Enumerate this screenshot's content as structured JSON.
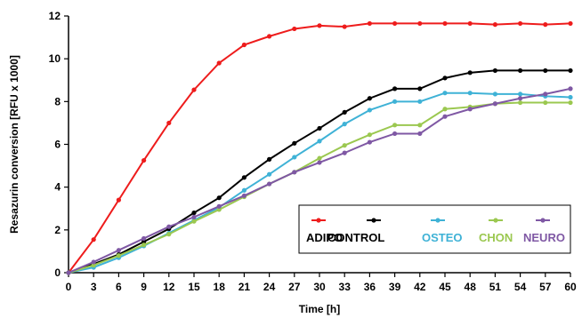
{
  "chart_data": {
    "type": "line",
    "title": "",
    "xlabel": "Time [h]",
    "ylabel": "Resazurin conversion [RFU x 1000]",
    "xlim": [
      0,
      60
    ],
    "ylim": [
      0,
      12
    ],
    "x_ticks": [
      0,
      3,
      6,
      9,
      12,
      15,
      18,
      21,
      24,
      27,
      30,
      33,
      36,
      39,
      42,
      45,
      48,
      51,
      54,
      57,
      60
    ],
    "y_ticks": [
      0,
      2,
      4,
      6,
      8,
      10,
      12
    ],
    "grid": false,
    "legend_position": "bottom-right",
    "x": [
      0,
      3,
      6,
      9,
      12,
      15,
      18,
      21,
      24,
      27,
      30,
      33,
      36,
      39,
      42,
      45,
      48,
      51,
      54,
      57,
      60
    ],
    "series": [
      {
        "name": "ADIPO",
        "color": "#ee1c1c",
        "label_color": "#000000",
        "values": [
          0,
          1.55,
          3.4,
          5.25,
          7.0,
          8.55,
          9.8,
          10.65,
          11.05,
          11.4,
          11.55,
          11.5,
          11.65,
          11.65,
          11.65,
          11.65,
          11.65,
          11.6,
          11.65,
          11.6,
          11.65
        ]
      },
      {
        "name": "CONTROL",
        "color": "#000000",
        "label_color": "#000000",
        "values": [
          0,
          0.4,
          0.85,
          1.45,
          2.05,
          2.8,
          3.5,
          4.45,
          5.3,
          6.05,
          6.75,
          7.5,
          8.15,
          8.6,
          8.6,
          9.1,
          9.35,
          9.45,
          9.45,
          9.45,
          9.45
        ]
      },
      {
        "name": "OSTEO",
        "color": "#3fb2d6",
        "label_color": "#3fb2d6",
        "values": [
          0,
          0.25,
          0.7,
          1.25,
          1.85,
          2.45,
          3.05,
          3.85,
          4.6,
          5.4,
          6.15,
          6.95,
          7.6,
          8.0,
          8.0,
          8.4,
          8.4,
          8.35,
          8.35,
          8.25,
          8.2
        ]
      },
      {
        "name": "CHON",
        "color": "#9bc850",
        "label_color": "#9bc850",
        "values": [
          0,
          0.35,
          0.8,
          1.3,
          1.8,
          2.4,
          2.95,
          3.55,
          4.15,
          4.7,
          5.35,
          5.95,
          6.45,
          6.9,
          6.9,
          7.65,
          7.75,
          7.9,
          7.95,
          7.95,
          7.95
        ]
      },
      {
        "name": "NEURO",
        "color": "#7f58a4",
        "label_color": "#7f58a4",
        "values": [
          0,
          0.5,
          1.05,
          1.6,
          2.15,
          2.6,
          3.1,
          3.6,
          4.15,
          4.7,
          5.15,
          5.6,
          6.1,
          6.5,
          6.5,
          7.3,
          7.65,
          7.9,
          8.15,
          8.35,
          8.6
        ]
      }
    ]
  }
}
